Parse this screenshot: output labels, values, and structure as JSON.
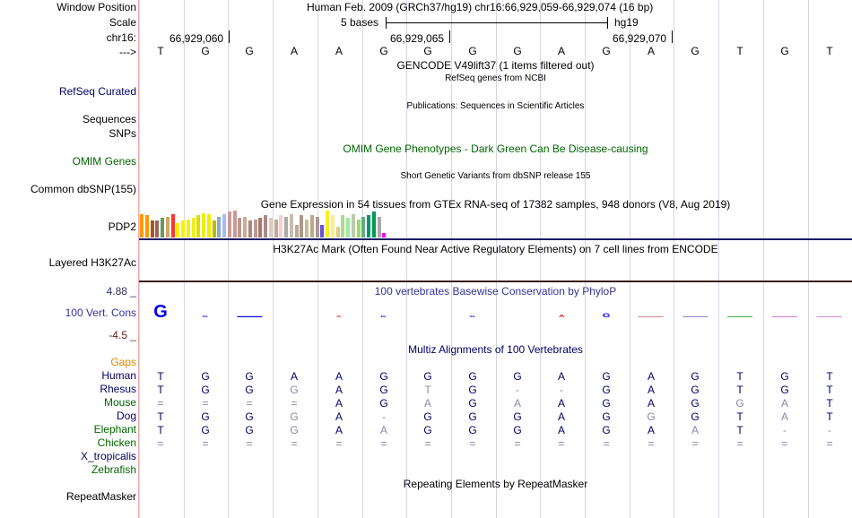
{
  "header": {
    "window_position_label": "Window Position",
    "position_text": "Human Feb. 2009 (GRCh37/hg19)   chr16:66,929,059-66,929,074 (16 bp)",
    "scale_label": "Scale",
    "scale_text": "5 bases",
    "assembly": "hg19",
    "chrom_label": "chr16:",
    "coords": [
      "66,929,060",
      "66,929,065",
      "66,929,070"
    ],
    "strand_label": "--->",
    "bases": [
      "T",
      "G",
      "G",
      "A",
      "A",
      "G",
      "G",
      "G",
      "G",
      "A",
      "G",
      "A",
      "G",
      "T",
      "G",
      "T"
    ]
  },
  "tracks": {
    "gencode_title": "GENCODE V49lift37 (1 items filtered out)",
    "refseq_subtitle": "RefSeq genes from NCBI",
    "refseq_label": "RefSeq Curated",
    "publications_title": "Publications: Sequences in Scientific Articles",
    "sequences_label": "Sequences",
    "snps_label": "SNPs",
    "omim_title": "OMIM Gene Phenotypes - Dark Green Can Be Disease-causing",
    "omim_label": "OMIM Genes",
    "dbsnp_title": "Short Genetic Variants from dbSNP release 155",
    "dbsnp_label": "Common dbSNP(155)",
    "gtex_title": "Gene Expression in 54 tissues from GTEx RNA-seq of 17382 samples, 948 donors (V8, Aug 2019)",
    "gtex_label": "PDP2",
    "h3k27ac_title": "H3K27Ac Mark (Often Found Near Active Regulatory Elements) on 7 cell lines from ENCODE",
    "h3k27ac_label": "Layered H3K27Ac",
    "cons_title": "100 vertebrates Basewise Conservation by PhyloP",
    "cons_label": "100 Vert. Cons",
    "cons_max": "4.88 _",
    "cons_min": "-4.5 _",
    "multiz_title": "Multiz Alignments of 100 Vertebrates",
    "gaps_label": "Gaps",
    "repeat_title": "Repeating Elements by RepeatMasker",
    "repeat_label": "RepeatMasker"
  },
  "alignment": [
    {
      "species": "Human",
      "color": "#000066",
      "bases": "TGGAAGGGGAGAGTGT",
      "dim": ""
    },
    {
      "species": "Rhesus",
      "color": "#000066",
      "bases": "TGGGAGTG--GAGTGT",
      "dim": "0001001000000000"
    },
    {
      "species": "Mouse",
      "color": "#006600",
      "bases": "====AGAGAAGAGGAT",
      "dim": "0000001010000110"
    },
    {
      "species": "Dog",
      "color": "#000066",
      "bases": "TGGGA-GGGAGGGTAT",
      "dim": "0001010000010010"
    },
    {
      "species": "Elephant",
      "color": "#006600",
      "bases": "TGGGAAGGGAGAAT--",
      "dim": "0001010000001000"
    },
    {
      "species": "Chicken",
      "color": "#006600",
      "bases": "================",
      "dim": ""
    },
    {
      "species": "X_tropicalis",
      "color": "#000066",
      "bases": "",
      "dim": ""
    },
    {
      "species": "Zebrafish",
      "color": "#006600",
      "bases": "",
      "dim": ""
    }
  ],
  "gtex_values": [
    0.95,
    0.9,
    0.7,
    0.7,
    0.8,
    0.85,
    0.95,
    0.6,
    0.7,
    0.75,
    0.8,
    0.9,
    1.0,
    0.95,
    0.7,
    0.85,
    0.95,
    1.05,
    1.1,
    0.8,
    0.85,
    0.7,
    0.75,
    0.8,
    0.9,
    0.8,
    0.75,
    0.9,
    0.85,
    0.95,
    0.5,
    0.9,
    0.75,
    0.9,
    0.85,
    0.5,
    1.1,
    0.9,
    0.45,
    0.9,
    0.8,
    0.95,
    0.75,
    0.85,
    0.9,
    1.05,
    0.85,
    0.2
  ],
  "gtex_colors": [
    "#ff9900",
    "#ff9900",
    "#aa5522",
    "#996655",
    "#669966",
    "#ccaa66",
    "#ff3333",
    "#ffee00",
    "#ffee00",
    "#eeee22",
    "#eeee22",
    "#dddd00",
    "#eeee00",
    "#eeee00",
    "#bbbb00",
    "#88aacc",
    "#aabbee",
    "#cc9999",
    "#cc9999",
    "#bb9988",
    "#ccaa99",
    "#aa8877",
    "#bb9999",
    "#aa7766",
    "#aa8888",
    "#ddccbb",
    "#bbaa99",
    "#ffcccc",
    "#aaaaaa",
    "#ccbbaa",
    "#bbaa99",
    "#aa9988",
    "#ccbb99",
    "#bbaa88",
    "#aa9999",
    "#6655cc",
    "#ffee22",
    "#ffee88",
    "#ddcc88",
    "#aadd88",
    "#99ee99",
    "#bbccaa",
    "#99dd66",
    "#66aa88",
    "#009966",
    "#009955",
    "#aaaaaa",
    "#ff00ff"
  ],
  "h3k27ac_colors": [
    "#1a1a66",
    "#3a1a1a"
  ],
  "conservation": [
    {
      "letter": "G",
      "color": "#0000ee",
      "score": 2.2
    },
    {
      "letter": "G",
      "color": "#0000ee",
      "score": 0.6
    },
    {
      "letter": "",
      "color": "#0000ee",
      "score": 0.3
    },
    {
      "letter": "",
      "color": "#0000ee",
      "score": 0.0
    },
    {
      "letter": "A",
      "color": "#ee0000",
      "score": 0.8
    },
    {
      "letter": "G",
      "color": "#0000ee",
      "score": 0.4
    },
    {
      "letter": "",
      "color": "#0000ee",
      "score": 0.0
    },
    {
      "letter": "G",
      "color": "#0000ee",
      "score": 0.5
    },
    {
      "letter": "",
      "color": "#0000ee",
      "score": 0.0
    },
    {
      "letter": "A",
      "color": "#ee0000",
      "score": 1.0
    },
    {
      "letter": "G",
      "color": "#0000ee",
      "score": 1.2
    },
    {
      "letter": "",
      "color": "#cc8888",
      "score": 0.1
    },
    {
      "letter": "",
      "color": "#8888cc",
      "score": 0.1
    },
    {
      "letter": "",
      "color": "#44aa44",
      "score": 0.2
    },
    {
      "letter": "",
      "color": "#cc88cc",
      "score": 0.3
    },
    {
      "letter": "",
      "color": "#cc88cc",
      "score": 0.2
    }
  ]
}
